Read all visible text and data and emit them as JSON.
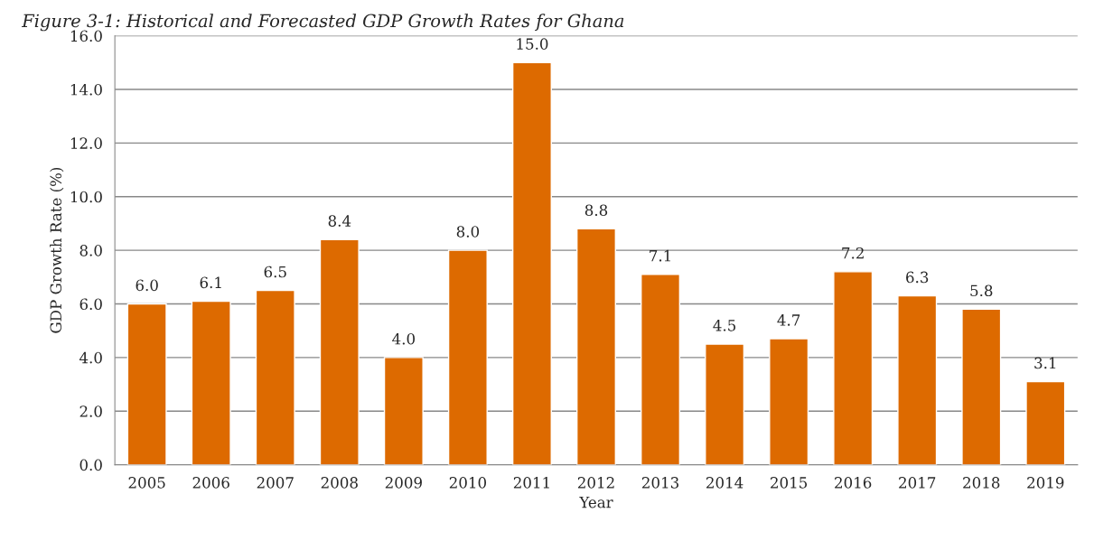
{
  "chart_data": {
    "type": "bar",
    "title": "Figure 3-1: Historical and Forecasted GDP Growth Rates for Ghana",
    "xlabel": "Year",
    "ylabel": "GDP Growth Rate (%)",
    "categories": [
      "2005",
      "2006",
      "2007",
      "2008",
      "2009",
      "2010",
      "2011",
      "2012",
      "2013",
      "2014",
      "2015",
      "2016",
      "2017",
      "2018",
      "2019"
    ],
    "values": [
      6.0,
      6.1,
      6.5,
      8.4,
      4.0,
      8.0,
      15.0,
      8.8,
      7.1,
      4.5,
      4.7,
      7.2,
      6.3,
      5.8,
      3.1
    ],
    "color": "#dd6a00",
    "value_labels": [
      "6.0",
      "6.1",
      "6.5",
      "8.4",
      "4.0",
      "8.0",
      "15.0",
      "8.8",
      "7.1",
      "4.5",
      "4.7",
      "7.2",
      "6.3",
      "5.8",
      "3.1"
    ],
    "ylim": [
      0,
      16
    ],
    "yticks": [
      {
        "value": 0,
        "label": "0.0"
      },
      {
        "value": 2,
        "label": "2.0"
      },
      {
        "value": 4,
        "label": "4.0"
      },
      {
        "value": 6,
        "label": "6.0"
      },
      {
        "value": 8,
        "label": "8.0"
      },
      {
        "value": 10,
        "label": "10.0"
      },
      {
        "value": 12,
        "label": "12.0"
      },
      {
        "value": 14,
        "label": "14.0"
      },
      {
        "value": 16,
        "label": "16.0"
      }
    ],
    "grid": "y"
  }
}
